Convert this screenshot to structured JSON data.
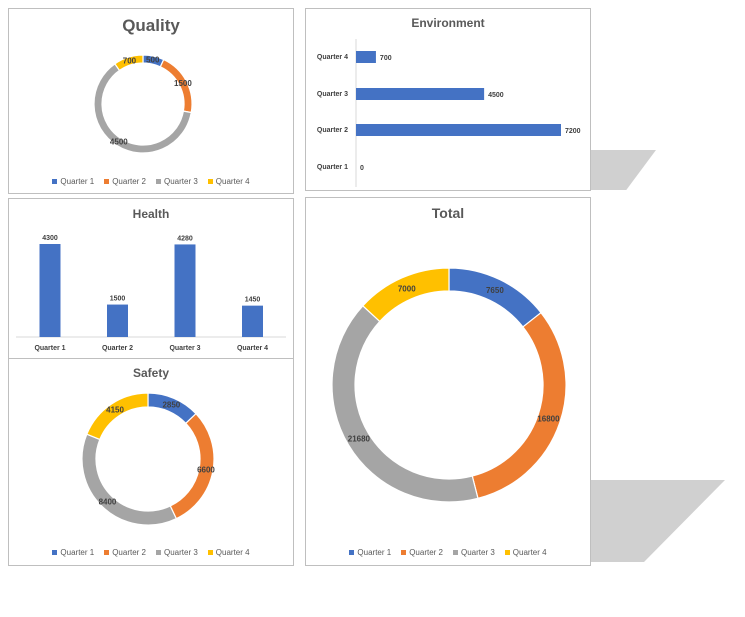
{
  "colors": {
    "Quarter 1": "#4472c4",
    "Quarter 2": "#ed7d31",
    "Quarter 3": "#a5a5a5",
    "Quarter 4": "#ffc000"
  },
  "chart_data": [
    {
      "id": "quality",
      "type": "pie",
      "subtype": "donut",
      "title": "Quality",
      "categories": [
        "Quarter 1",
        "Quarter 2",
        "Quarter 3",
        "Quarter 4"
      ],
      "values": [
        500,
        1500,
        4500,
        700
      ],
      "legend": "bottom"
    },
    {
      "id": "environment",
      "type": "bar",
      "orientation": "horizontal",
      "title": "Environment",
      "categories": [
        "Quarter 1",
        "Quarter 2",
        "Quarter 3",
        "Quarter 4"
      ],
      "values": [
        0,
        7200,
        4500,
        700
      ]
    },
    {
      "id": "health",
      "type": "bar",
      "orientation": "vertical",
      "title": "Health",
      "categories": [
        "Quarter 1",
        "Quarter 2",
        "Quarter 3",
        "Quarter 4"
      ],
      "values": [
        4300,
        1500,
        4280,
        1450
      ]
    },
    {
      "id": "safety",
      "type": "pie",
      "subtype": "donut",
      "title": "Safety",
      "categories": [
        "Quarter 1",
        "Quarter 2",
        "Quarter 3",
        "Quarter 4"
      ],
      "values": [
        2850,
        6600,
        8400,
        4150
      ],
      "legend": "bottom"
    },
    {
      "id": "total",
      "type": "pie",
      "subtype": "donut",
      "title": "Total",
      "categories": [
        "Quarter 1",
        "Quarter 2",
        "Quarter 3",
        "Quarter 4"
      ],
      "values": [
        7650,
        16800,
        21680,
        7000
      ],
      "legend": "bottom"
    }
  ]
}
